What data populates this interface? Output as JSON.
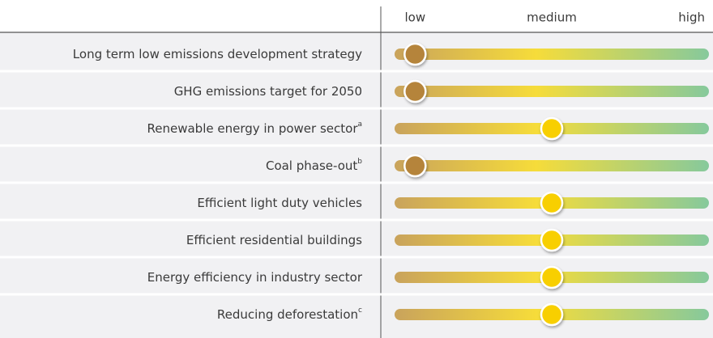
{
  "chart_data": {
    "type": "rating",
    "categories": [
      "Long term low emissions development strategy",
      "GHG emissions target for 2050",
      "Renewable energy in power sector",
      "Coal phase-out",
      "Efficient light duty vehicles",
      "Efficient residential buildings",
      "Energy efficiency in industry sector",
      "Reducing deforestation"
    ],
    "notes": [
      null,
      null,
      "a",
      "b",
      null,
      null,
      null,
      "c"
    ],
    "values": [
      0,
      0,
      1,
      0,
      1,
      1,
      1,
      1
    ],
    "colors": [
      "#b5843a",
      "#b5843a",
      "#f8cf00",
      "#b5843a",
      "#f8cf00",
      "#f8cf00",
      "#f8cf00",
      "#f8cf00"
    ],
    "xlim": [
      -0.15,
      2.15
    ],
    "xticks": [
      {
        "value": 0,
        "label": "low"
      },
      {
        "value": 1,
        "label": "medium"
      },
      {
        "value": 2,
        "label": "high"
      }
    ]
  }
}
